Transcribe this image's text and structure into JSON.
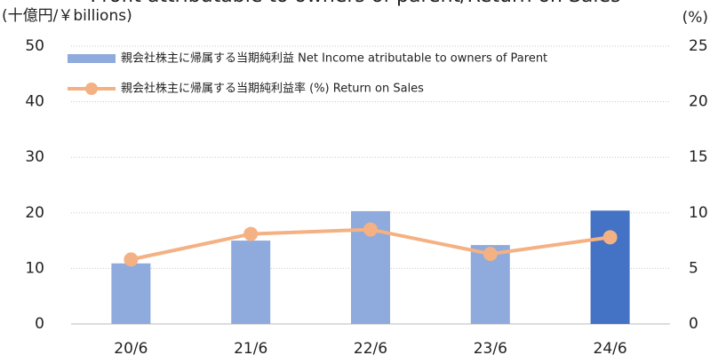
{
  "chart_data": {
    "type": "bar",
    "title": "Profit attributable to owners of parent/Return on Sales",
    "y_label": "(十億円/￥billions)",
    "y2_label": "(%)",
    "categories": [
      "20/6",
      "21/6",
      "22/6",
      "23/6",
      "24/6"
    ],
    "series": [
      {
        "name": "親会社株主に帰属する当期純利益 Net Income atributable to owners of Parent",
        "type": "bar",
        "color": "#8faadc",
        "colors": [
          "#8faadc",
          "#8faadc",
          "#8faadc",
          "#8faadc",
          "#4472c4"
        ],
        "values": [
          10.9,
          15.0,
          20.3,
          14.2,
          20.4
        ]
      },
      {
        "name": "親会社株主に帰属する当期純利益率 (%) Return on Sales",
        "type": "line",
        "axis": "y2",
        "color": "#f4b183",
        "values": [
          5.8,
          8.1,
          8.5,
          6.3,
          7.8
        ]
      }
    ],
    "ylim": [
      0,
      50
    ],
    "yticks": [
      0,
      10,
      20,
      30,
      40,
      50
    ],
    "y2lim": [
      0,
      25
    ],
    "y2ticks": [
      0,
      5,
      10,
      15,
      20,
      25
    ],
    "grid": true,
    "legend": "top-left"
  }
}
